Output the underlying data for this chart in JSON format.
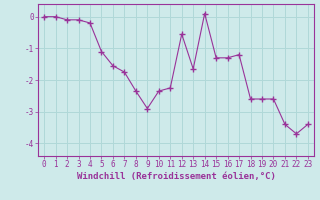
{
  "x": [
    0,
    1,
    2,
    3,
    4,
    5,
    6,
    7,
    8,
    9,
    10,
    11,
    12,
    13,
    14,
    15,
    16,
    17,
    18,
    19,
    20,
    21,
    22,
    23
  ],
  "y": [
    0.0,
    0.0,
    -0.1,
    -0.1,
    -0.2,
    -1.1,
    -1.55,
    -1.75,
    -2.35,
    -2.9,
    -2.35,
    -2.25,
    -0.55,
    -1.65,
    0.1,
    -1.3,
    -1.3,
    -1.2,
    -2.6,
    -2.6,
    -2.6,
    -3.4,
    -3.7,
    -3.4
  ],
  "line_color": "#993399",
  "marker": "D",
  "marker_size": 2,
  "background_color": "#ceeaea",
  "grid_color": "#b0d8d8",
  "xlabel": "Windchill (Refroidissement éolien,°C)",
  "ylim": [
    -4.4,
    0.4
  ],
  "xlim": [
    -0.5,
    23.5
  ],
  "yticks": [
    0,
    -1,
    -2,
    -3,
    -4
  ],
  "xticks": [
    0,
    1,
    2,
    3,
    4,
    5,
    6,
    7,
    8,
    9,
    10,
    11,
    12,
    13,
    14,
    15,
    16,
    17,
    18,
    19,
    20,
    21,
    22,
    23
  ],
  "xlabel_fontsize": 6.5,
  "tick_fontsize": 5.5
}
